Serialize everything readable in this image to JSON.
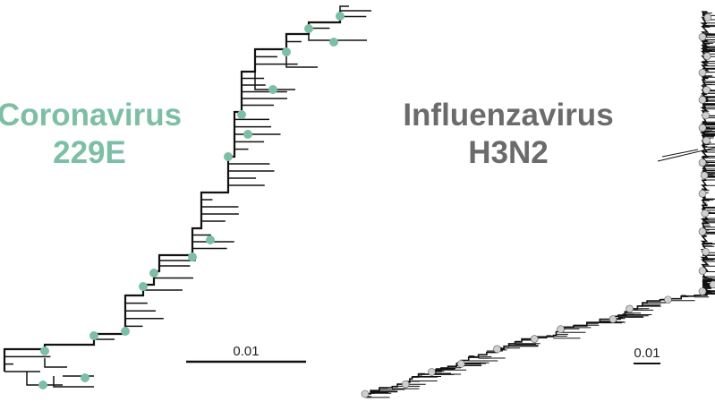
{
  "panels": [
    {
      "title_lines": [
        "Coronavirus",
        "229E"
      ],
      "scale_label": "0.01"
    },
    {
      "title_lines": [
        "Influenzavirus",
        "H3N2"
      ],
      "scale_label": "0.01"
    }
  ]
}
